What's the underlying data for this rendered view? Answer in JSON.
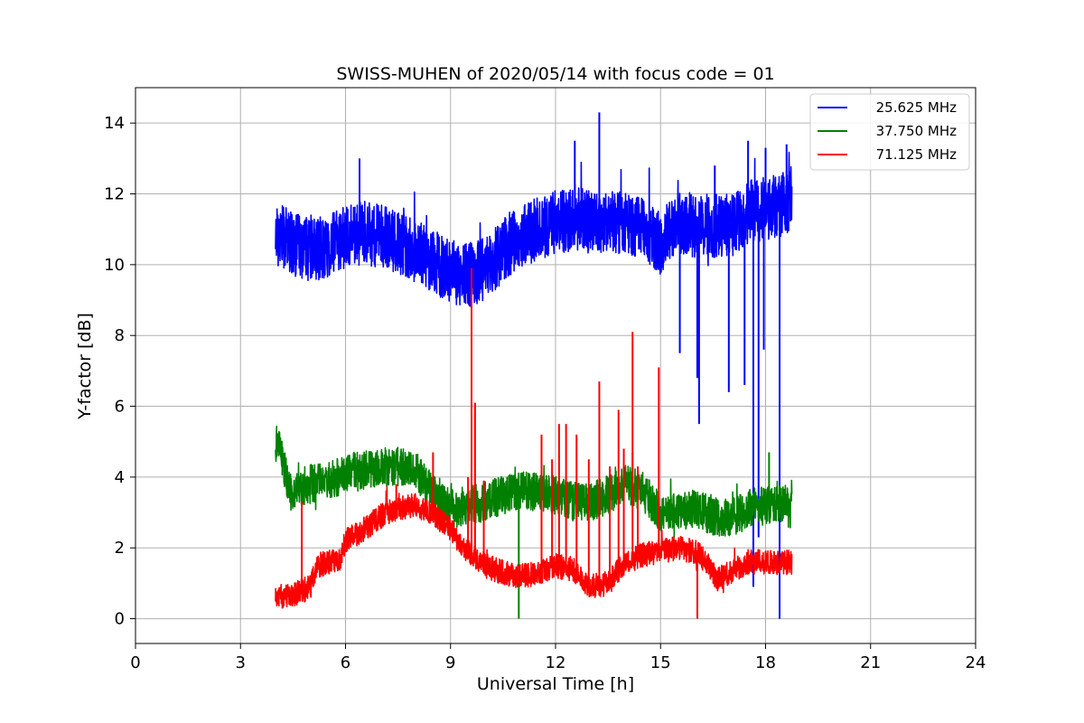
{
  "chart_data": {
    "type": "line",
    "title": "SWISS-MUHEN of 2020/05/14 with focus code = 01",
    "xlabel": "Universal Time [h]",
    "ylabel": "Y-factor [dB]",
    "xlim": [
      0,
      24
    ],
    "ylim": [
      -0.7,
      15.0
    ],
    "xticks": [
      0,
      3,
      6,
      9,
      12,
      15,
      18,
      21,
      24
    ],
    "yticks": [
      0,
      2,
      4,
      6,
      8,
      10,
      12,
      14
    ],
    "grid": true,
    "legend_position": "top-right",
    "series": [
      {
        "name": "25.625 MHz",
        "color": "#0000ff",
        "noise": 0.9,
        "x": [
          4.0,
          4.5,
          5.0,
          5.5,
          6.0,
          6.5,
          7.0,
          7.5,
          8.0,
          8.5,
          9.0,
          9.5,
          10.0,
          10.5,
          11.0,
          11.5,
          12.0,
          12.5,
          13.0,
          13.5,
          14.0,
          14.5,
          15.0,
          15.5,
          16.0,
          16.5,
          17.0,
          17.5,
          18.0,
          18.5,
          18.75
        ],
        "y": [
          10.9,
          10.6,
          10.4,
          10.5,
          10.8,
          10.9,
          10.8,
          10.6,
          10.4,
          10.1,
          9.8,
          9.7,
          9.9,
          10.4,
          10.8,
          11.0,
          11.2,
          11.3,
          11.2,
          11.2,
          11.2,
          11.0,
          10.6,
          11.2,
          11.1,
          11.1,
          11.1,
          11.5,
          11.6,
          11.7,
          11.9
        ],
        "spikes": [
          {
            "x": 13.25,
            "y": 14.3
          },
          {
            "x": 12.55,
            "y": 13.5
          },
          {
            "x": 6.4,
            "y": 13.0
          },
          {
            "x": 17.5,
            "y": 13.5
          },
          {
            "x": 18.0,
            "y": 13.3
          },
          {
            "x": 18.6,
            "y": 13.4
          },
          {
            "x": 16.55,
            "y": 12.8
          },
          {
            "x": 15.55,
            "y": 7.5
          },
          {
            "x": 16.05,
            "y": 6.8
          },
          {
            "x": 16.1,
            "y": 5.5
          },
          {
            "x": 16.95,
            "y": 6.4
          },
          {
            "x": 17.4,
            "y": 6.6
          },
          {
            "x": 17.65,
            "y": 0.9
          },
          {
            "x": 17.8,
            "y": 2.3
          },
          {
            "x": 17.95,
            "y": 7.6
          },
          {
            "x": 18.4,
            "y": 0.0
          }
        ]
      },
      {
        "name": "37.750 MHz",
        "color": "#008000",
        "noise": 0.55,
        "x": [
          4.0,
          4.15,
          4.4,
          5.0,
          5.5,
          6.0,
          6.5,
          7.0,
          7.5,
          8.0,
          8.5,
          9.0,
          9.5,
          10.0,
          10.5,
          11.0,
          11.5,
          12.0,
          12.5,
          13.0,
          13.5,
          14.0,
          14.5,
          15.0,
          15.5,
          16.0,
          16.5,
          17.0,
          17.5,
          18.0,
          18.5,
          18.75
        ],
        "y": [
          5.0,
          4.7,
          3.6,
          3.8,
          3.9,
          4.1,
          4.2,
          4.3,
          4.3,
          4.2,
          3.5,
          3.1,
          3.2,
          3.3,
          3.5,
          3.6,
          3.6,
          3.5,
          3.3,
          3.3,
          3.5,
          3.8,
          3.6,
          3.0,
          3.0,
          3.1,
          2.9,
          2.8,
          3.1,
          3.2,
          3.3,
          3.0
        ],
        "spikes": [
          {
            "x": 10.95,
            "y": 0.0
          },
          {
            "x": 18.1,
            "y": 4.7
          },
          {
            "x": 14.2,
            "y": 4.7
          }
        ]
      },
      {
        "name": "71.125 MHz",
        "color": "#ff0000",
        "noise": 0.35,
        "x": [
          4.0,
          4.5,
          4.8,
          5.0,
          5.2,
          5.5,
          5.8,
          6.0,
          6.5,
          7.0,
          7.5,
          8.0,
          8.5,
          9.0,
          9.5,
          10.0,
          10.5,
          11.0,
          11.5,
          12.0,
          12.5,
          13.0,
          13.5,
          14.0,
          14.5,
          15.0,
          15.5,
          16.0,
          16.3,
          16.6,
          17.0,
          17.5,
          18.0,
          18.5,
          18.75
        ],
        "y": [
          0.6,
          0.7,
          0.8,
          0.9,
          1.5,
          1.6,
          1.6,
          2.2,
          2.5,
          2.9,
          3.1,
          3.2,
          3.0,
          2.5,
          1.9,
          1.5,
          1.3,
          1.2,
          1.3,
          1.5,
          1.4,
          0.9,
          1.0,
          1.6,
          1.8,
          1.9,
          2.0,
          1.9,
          1.6,
          1.1,
          1.3,
          1.6,
          1.6,
          1.6,
          1.6
        ],
        "spikes": [
          {
            "x": 4.75,
            "y": 3.3
          },
          {
            "x": 7.45,
            "y": 3.8
          },
          {
            "x": 8.5,
            "y": 4.7
          },
          {
            "x": 9.5,
            "y": 4.0
          },
          {
            "x": 9.6,
            "y": 9.9
          },
          {
            "x": 9.7,
            "y": 6.1
          },
          {
            "x": 9.95,
            "y": 3.9
          },
          {
            "x": 11.6,
            "y": 5.2
          },
          {
            "x": 11.9,
            "y": 4.5
          },
          {
            "x": 12.1,
            "y": 5.5
          },
          {
            "x": 12.3,
            "y": 5.5
          },
          {
            "x": 12.6,
            "y": 5.2
          },
          {
            "x": 12.95,
            "y": 4.5
          },
          {
            "x": 13.25,
            "y": 6.7
          },
          {
            "x": 13.55,
            "y": 4.3
          },
          {
            "x": 13.8,
            "y": 5.9
          },
          {
            "x": 13.95,
            "y": 4.8
          },
          {
            "x": 14.2,
            "y": 8.1
          },
          {
            "x": 14.35,
            "y": 4.3
          },
          {
            "x": 14.95,
            "y": 7.1
          },
          {
            "x": 16.05,
            "y": 0.0
          }
        ]
      }
    ]
  },
  "colors": {
    "grid": "#b0b0b0",
    "axes": "#000000",
    "background": "#ffffff"
  }
}
